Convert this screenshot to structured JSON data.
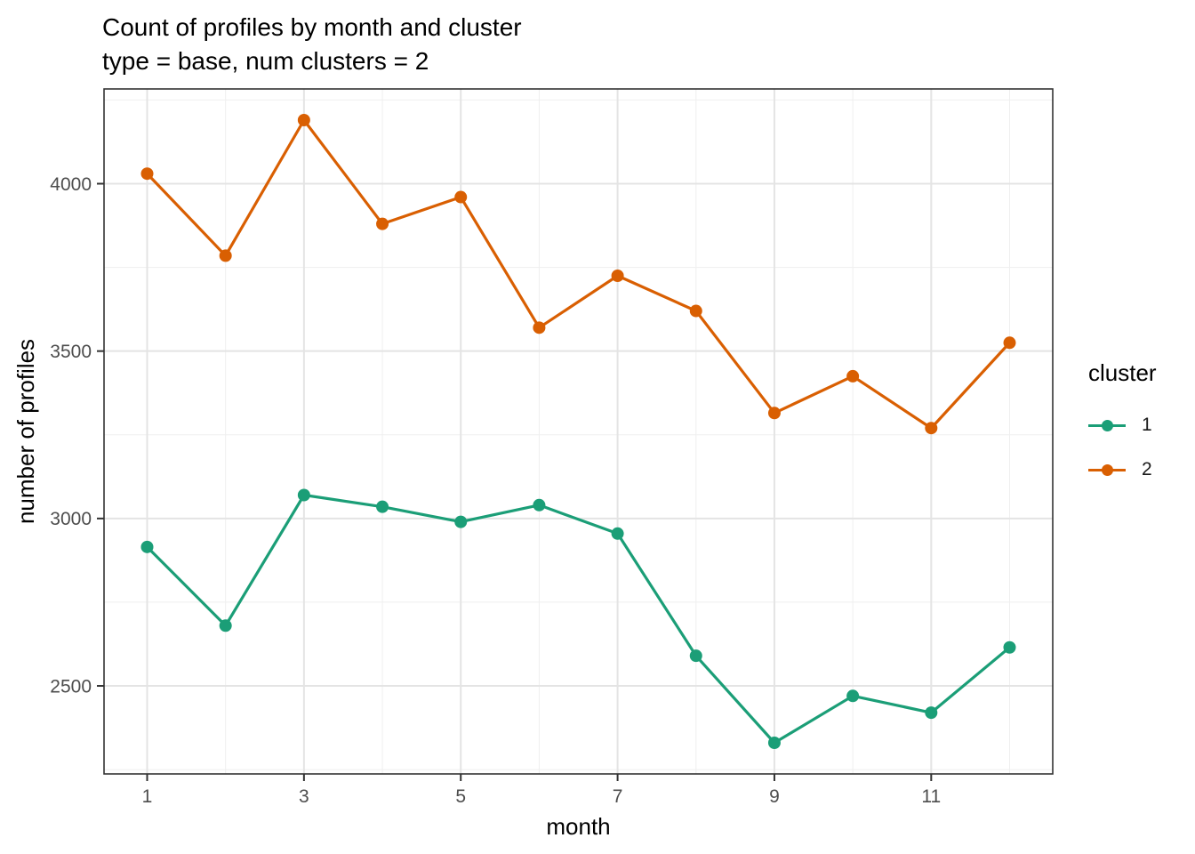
{
  "header": {
    "title": "Count of profiles by month and cluster",
    "subtitle": "type = base, num clusters = 2"
  },
  "axes": {
    "x_title": "month",
    "y_title": "number of profiles"
  },
  "legend": {
    "title": "cluster",
    "entries": [
      {
        "label": "1",
        "color": "#1B9E77"
      },
      {
        "label": "2",
        "color": "#D95F02"
      }
    ]
  },
  "chart_data": {
    "type": "line",
    "title": "Count of profiles by month and cluster",
    "subtitle": "type = base, num clusters = 2",
    "xlabel": "month",
    "ylabel": "number of profiles",
    "x": [
      1,
      2,
      3,
      4,
      5,
      6,
      7,
      8,
      9,
      10,
      11,
      12
    ],
    "series": [
      {
        "name": "1",
        "color": "#1B9E77",
        "values": [
          2915,
          2680,
          3070,
          3035,
          2990,
          3040,
          2955,
          2590,
          2330,
          2470,
          2420,
          2615
        ]
      },
      {
        "name": "2",
        "color": "#D95F02",
        "values": [
          4030,
          3785,
          4190,
          3880,
          3960,
          3570,
          3725,
          3620,
          3315,
          3425,
          3270,
          3525
        ]
      }
    ],
    "x_ticks": [
      1,
      3,
      5,
      7,
      9,
      11
    ],
    "x_minor": [
      2,
      4,
      6,
      8,
      10,
      12
    ],
    "y_ticks": [
      2500,
      3000,
      3500,
      4000
    ],
    "y_minor": [
      2250,
      2750,
      3250,
      3750,
      4250
    ],
    "xlim": [
      0.45,
      12.55
    ],
    "ylim": [
      2237,
      4283
    ],
    "grid": true,
    "legend_position": "right",
    "theme": {
      "grid_major_color": "#E4E4E4",
      "grid_minor_color": "#EFEFEF",
      "panel_border_color": "#333333",
      "tick_color": "#333333",
      "tick_label_color": "#4D4D4D",
      "background": "#FFFFFF"
    }
  }
}
